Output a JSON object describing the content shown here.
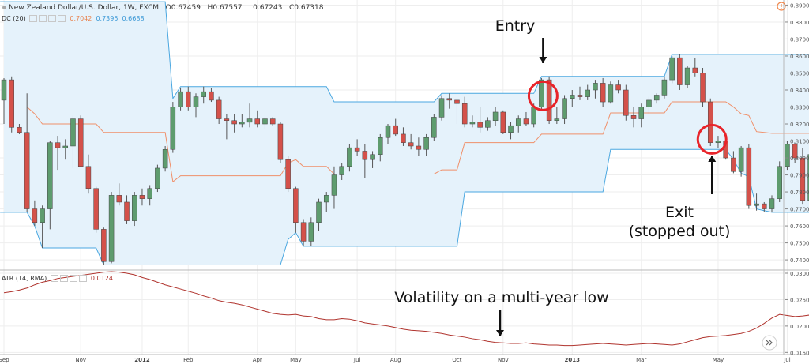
{
  "header": {
    "symbol_title": "New Zealand Dollar/U.S. Dollar, 1W, FXCM",
    "open_label": "O",
    "open": "0.67459",
    "high_label": "H",
    "high": "0.67557",
    "low_label": "L",
    "low": "0.67243",
    "close_label": "C",
    "close": "0.67318",
    "dc_label": "DC (20)",
    "dc_mid": "0.7042",
    "dc_upper": "0.7395",
    "dc_lower": "0.6688",
    "atr_label": "ATR (14, RMA)",
    "atr_value": "0.0124"
  },
  "colors": {
    "up_candle": "#5e9c6e",
    "down_candle": "#d4514a",
    "dc_band": "#4aa7e0",
    "dc_fill": "#e5f2fb",
    "dc_mid": "#f0906a",
    "atr_line": "#b0342e",
    "circle": "#e8242a",
    "grid": "#eeeeee"
  },
  "annotations": {
    "entry": "Entry",
    "exit_line1": "Exit",
    "exit_line2": "(stopped out)",
    "volatility": "Volatility on a multi-year low"
  },
  "chart_data": {
    "type": "candlestick",
    "price_axis": {
      "ylim": [
        0.734,
        0.893
      ],
      "ticks": [
        "0.89000",
        "0.88000",
        "0.87000",
        "0.86000",
        "0.85000",
        "0.84000",
        "0.83000",
        "0.82000",
        "0.81000",
        "0.80000",
        "0.79000",
        "0.78000",
        "0.77000",
        "0.76000",
        "0.75000",
        "0.74000"
      ]
    },
    "atr_axis": {
      "ylim": [
        0.0146,
        0.0306
      ],
      "ticks": [
        "0.0300",
        "0.0250",
        "0.0200",
        "0.0150"
      ]
    },
    "x_labels": [
      "Sep",
      "Nov",
      "2012",
      "Feb",
      "Apr",
      "May",
      "Jul",
      "Aug",
      "Oct",
      "Nov",
      "2013",
      "Mar",
      "May",
      "Jul",
      "Aug"
    ],
    "x_label_bar_index": [
      0,
      10,
      18,
      24,
      33,
      38,
      46,
      51,
      59,
      65,
      74,
      83,
      93,
      102,
      107
    ],
    "n_bars": 110,
    "candles_ohlc": [
      [
        0.834,
        0.847,
        0.82,
        0.846
      ],
      [
        0.846,
        0.848,
        0.815,
        0.818
      ],
      [
        0.818,
        0.82,
        0.814,
        0.815
      ],
      [
        0.815,
        0.838,
        0.768,
        0.77
      ],
      [
        0.77,
        0.775,
        0.76,
        0.762
      ],
      [
        0.762,
        0.772,
        0.747,
        0.77
      ],
      [
        0.77,
        0.81,
        0.758,
        0.809
      ],
      [
        0.809,
        0.813,
        0.793,
        0.806
      ],
      [
        0.806,
        0.811,
        0.799,
        0.807
      ],
      [
        0.807,
        0.825,
        0.794,
        0.823
      ],
      [
        0.823,
        0.825,
        0.796,
        0.795
      ],
      [
        0.795,
        0.802,
        0.779,
        0.782
      ],
      [
        0.782,
        0.783,
        0.756,
        0.758
      ],
      [
        0.758,
        0.759,
        0.737,
        0.739
      ],
      [
        0.739,
        0.78,
        0.738,
        0.778
      ],
      [
        0.778,
        0.785,
        0.772,
        0.774
      ],
      [
        0.774,
        0.778,
        0.761,
        0.763
      ],
      [
        0.763,
        0.78,
        0.76,
        0.778
      ],
      [
        0.778,
        0.782,
        0.772,
        0.776
      ],
      [
        0.776,
        0.784,
        0.772,
        0.782
      ],
      [
        0.782,
        0.796,
        0.78,
        0.794
      ],
      [
        0.794,
        0.807,
        0.792,
        0.805
      ],
      [
        0.805,
        0.833,
        0.803,
        0.83
      ],
      [
        0.83,
        0.841,
        0.828,
        0.839
      ],
      [
        0.839,
        0.842,
        0.828,
        0.83
      ],
      [
        0.83,
        0.838,
        0.824,
        0.836
      ],
      [
        0.836,
        0.842,
        0.832,
        0.839
      ],
      [
        0.839,
        0.841,
        0.833,
        0.834
      ],
      [
        0.834,
        0.836,
        0.82,
        0.823
      ],
      [
        0.823,
        0.826,
        0.811,
        0.822
      ],
      [
        0.822,
        0.826,
        0.815,
        0.82
      ],
      [
        0.82,
        0.826,
        0.818,
        0.821
      ],
      [
        0.821,
        0.832,
        0.818,
        0.823
      ],
      [
        0.823,
        0.828,
        0.818,
        0.82
      ],
      [
        0.82,
        0.824,
        0.817,
        0.823
      ],
      [
        0.823,
        0.824,
        0.819,
        0.82
      ],
      [
        0.82,
        0.821,
        0.797,
        0.799
      ],
      [
        0.799,
        0.801,
        0.78,
        0.782
      ],
      [
        0.782,
        0.783,
        0.756,
        0.762
      ],
      [
        0.762,
        0.764,
        0.748,
        0.751
      ],
      [
        0.751,
        0.765,
        0.748,
        0.762
      ],
      [
        0.762,
        0.776,
        0.757,
        0.774
      ],
      [
        0.774,
        0.78,
        0.768,
        0.778
      ],
      [
        0.778,
        0.795,
        0.77,
        0.79
      ],
      [
        0.79,
        0.797,
        0.787,
        0.795
      ],
      [
        0.795,
        0.808,
        0.792,
        0.806
      ],
      [
        0.806,
        0.811,
        0.801,
        0.804
      ],
      [
        0.804,
        0.808,
        0.788,
        0.799
      ],
      [
        0.799,
        0.804,
        0.794,
        0.802
      ],
      [
        0.802,
        0.814,
        0.798,
        0.812
      ],
      [
        0.812,
        0.82,
        0.808,
        0.819
      ],
      [
        0.819,
        0.823,
        0.813,
        0.814
      ],
      [
        0.814,
        0.818,
        0.807,
        0.809
      ],
      [
        0.809,
        0.814,
        0.805,
        0.807
      ],
      [
        0.807,
        0.812,
        0.801,
        0.805
      ],
      [
        0.805,
        0.814,
        0.801,
        0.812
      ],
      [
        0.812,
        0.826,
        0.81,
        0.824
      ],
      [
        0.824,
        0.837,
        0.822,
        0.835
      ],
      [
        0.835,
        0.838,
        0.829,
        0.834
      ],
      [
        0.834,
        0.835,
        0.82,
        0.832
      ],
      [
        0.832,
        0.836,
        0.818,
        0.82
      ],
      [
        0.82,
        0.825,
        0.818,
        0.821
      ],
      [
        0.821,
        0.83,
        0.815,
        0.818
      ],
      [
        0.818,
        0.824,
        0.816,
        0.822
      ],
      [
        0.822,
        0.83,
        0.819,
        0.827
      ],
      [
        0.827,
        0.828,
        0.814,
        0.815
      ],
      [
        0.815,
        0.821,
        0.811,
        0.819
      ],
      [
        0.819,
        0.825,
        0.815,
        0.823
      ],
      [
        0.823,
        0.827,
        0.819,
        0.82
      ],
      [
        0.82,
        0.832,
        0.818,
        0.83
      ],
      [
        0.83,
        0.847,
        0.828,
        0.846
      ],
      [
        0.846,
        0.848,
        0.82,
        0.822
      ],
      [
        0.822,
        0.83,
        0.82,
        0.823
      ],
      [
        0.823,
        0.837,
        0.82,
        0.835
      ],
      [
        0.835,
        0.84,
        0.83,
        0.837
      ],
      [
        0.837,
        0.842,
        0.834,
        0.836
      ],
      [
        0.836,
        0.843,
        0.834,
        0.84
      ],
      [
        0.84,
        0.846,
        0.835,
        0.844
      ],
      [
        0.844,
        0.847,
        0.83,
        0.833
      ],
      [
        0.833,
        0.845,
        0.832,
        0.843
      ],
      [
        0.843,
        0.846,
        0.838,
        0.84
      ],
      [
        0.84,
        0.843,
        0.822,
        0.825
      ],
      [
        0.825,
        0.83,
        0.818,
        0.823
      ],
      [
        0.823,
        0.832,
        0.818,
        0.83
      ],
      [
        0.83,
        0.836,
        0.826,
        0.834
      ],
      [
        0.834,
        0.838,
        0.832,
        0.837
      ],
      [
        0.837,
        0.848,
        0.835,
        0.846
      ],
      [
        0.846,
        0.86,
        0.844,
        0.859
      ],
      [
        0.859,
        0.861,
        0.84,
        0.843
      ],
      [
        0.843,
        0.854,
        0.841,
        0.853
      ],
      [
        0.853,
        0.859,
        0.848,
        0.85
      ],
      [
        0.85,
        0.853,
        0.83,
        0.833
      ],
      [
        0.833,
        0.835,
        0.807,
        0.809
      ],
      [
        0.809,
        0.813,
        0.806,
        0.81
      ],
      [
        0.81,
        0.811,
        0.799,
        0.8
      ],
      [
        0.8,
        0.804,
        0.791,
        0.792
      ],
      [
        0.792,
        0.807,
        0.789,
        0.806
      ],
      [
        0.806,
        0.808,
        0.77,
        0.772
      ],
      [
        0.772,
        0.779,
        0.769,
        0.773
      ],
      [
        0.773,
        0.774,
        0.768,
        0.77
      ],
      [
        0.77,
        0.778,
        0.768,
        0.776
      ],
      [
        0.776,
        0.798,
        0.774,
        0.795
      ],
      [
        0.795,
        0.81,
        0.793,
        0.808
      ],
      [
        0.808,
        0.809,
        0.797,
        0.8
      ],
      [
        0.8,
        0.806,
        0.773,
        0.775
      ],
      [
        0.775,
        0.804,
        0.773,
        0.802
      ],
      [
        0.802,
        0.813,
        0.799,
        0.81
      ],
      [
        0.81,
        0.812,
        0.798,
        0.8
      ],
      [
        0.8,
        0.805,
        0.795,
        0.802
      ],
      [
        0.802,
        0.806,
        0.8,
        0.804
      ]
    ],
    "donchian_upper": [
      0.892,
      0.892,
      0.892,
      0.892,
      0.892,
      0.892,
      0.892,
      0.892,
      0.892,
      0.892,
      0.892,
      0.892,
      0.892,
      0.892,
      0.892,
      0.892,
      0.892,
      0.892,
      0.892,
      0.892,
      0.892,
      0.892,
      0.835,
      0.842,
      0.842,
      0.842,
      0.842,
      0.842,
      0.842,
      0.842,
      0.842,
      0.842,
      0.842,
      0.842,
      0.842,
      0.842,
      0.842,
      0.842,
      0.842,
      0.842,
      0.842,
      0.842,
      0.842,
      0.833,
      0.833,
      0.833,
      0.833,
      0.833,
      0.833,
      0.833,
      0.833,
      0.833,
      0.833,
      0.833,
      0.833,
      0.833,
      0.833,
      0.838,
      0.838,
      0.838,
      0.838,
      0.838,
      0.838,
      0.838,
      0.838,
      0.838,
      0.838,
      0.838,
      0.838,
      0.838,
      0.848,
      0.848,
      0.848,
      0.848,
      0.848,
      0.848,
      0.848,
      0.848,
      0.848,
      0.848,
      0.848,
      0.848,
      0.848,
      0.848,
      0.848,
      0.848,
      0.848,
      0.861,
      0.861,
      0.861,
      0.861,
      0.861,
      0.861,
      0.861,
      0.861,
      0.861,
      0.861,
      0.861,
      0.861,
      0.861,
      0.861,
      0.861,
      0.861,
      0.861,
      0.861,
      0.861,
      0.861,
      0.861,
      0.861,
      0.861
    ],
    "donchian_lower": [
      0.768,
      0.768,
      0.768,
      0.768,
      0.76,
      0.747,
      0.747,
      0.747,
      0.747,
      0.747,
      0.747,
      0.747,
      0.747,
      0.737,
      0.737,
      0.737,
      0.737,
      0.737,
      0.737,
      0.737,
      0.737,
      0.737,
      0.737,
      0.737,
      0.737,
      0.737,
      0.737,
      0.737,
      0.737,
      0.737,
      0.737,
      0.737,
      0.737,
      0.737,
      0.737,
      0.737,
      0.737,
      0.752,
      0.756,
      0.748,
      0.748,
      0.748,
      0.748,
      0.748,
      0.748,
      0.748,
      0.748,
      0.748,
      0.748,
      0.748,
      0.748,
      0.748,
      0.748,
      0.748,
      0.748,
      0.748,
      0.748,
      0.748,
      0.748,
      0.748,
      0.78,
      0.78,
      0.78,
      0.78,
      0.78,
      0.78,
      0.78,
      0.78,
      0.78,
      0.78,
      0.78,
      0.78,
      0.78,
      0.78,
      0.78,
      0.78,
      0.78,
      0.78,
      0.78,
      0.805,
      0.805,
      0.805,
      0.805,
      0.805,
      0.805,
      0.805,
      0.805,
      0.805,
      0.805,
      0.805,
      0.805,
      0.805,
      0.805,
      0.805,
      0.805,
      0.799,
      0.791,
      0.789,
      0.77,
      0.769,
      0.768,
      0.768,
      0.768,
      0.768,
      0.768,
      0.768,
      0.768,
      0.768,
      0.768,
      0.768
    ],
    "donchian_mid": [
      0.83,
      0.83,
      0.83,
      0.83,
      0.826,
      0.82,
      0.82,
      0.82,
      0.82,
      0.82,
      0.82,
      0.82,
      0.82,
      0.815,
      0.815,
      0.815,
      0.815,
      0.815,
      0.815,
      0.815,
      0.815,
      0.815,
      0.786,
      0.7895,
      0.7895,
      0.7895,
      0.7895,
      0.7895,
      0.7895,
      0.7895,
      0.7895,
      0.7895,
      0.7895,
      0.7895,
      0.7895,
      0.7895,
      0.7895,
      0.797,
      0.799,
      0.795,
      0.795,
      0.795,
      0.795,
      0.7905,
      0.7905,
      0.7905,
      0.7905,
      0.7905,
      0.7905,
      0.7905,
      0.7905,
      0.7905,
      0.7905,
      0.7905,
      0.7905,
      0.7905,
      0.7905,
      0.793,
      0.793,
      0.793,
      0.809,
      0.809,
      0.809,
      0.809,
      0.809,
      0.809,
      0.809,
      0.809,
      0.809,
      0.809,
      0.814,
      0.814,
      0.814,
      0.814,
      0.814,
      0.814,
      0.814,
      0.814,
      0.814,
      0.8265,
      0.8265,
      0.8265,
      0.8265,
      0.8265,
      0.8265,
      0.8265,
      0.8265,
      0.833,
      0.833,
      0.833,
      0.833,
      0.833,
      0.833,
      0.833,
      0.833,
      0.83,
      0.826,
      0.825,
      0.8155,
      0.815,
      0.8145,
      0.8145,
      0.8145,
      0.8145,
      0.8145,
      0.8145,
      0.8145,
      0.8145,
      0.8145,
      0.8145
    ],
    "atr_values": [
      0.0263,
      0.0265,
      0.0268,
      0.0272,
      0.0278,
      0.0283,
      0.0286,
      0.029,
      0.0292,
      0.0294,
      0.0296,
      0.0298,
      0.03,
      0.0302,
      0.0303,
      0.0302,
      0.03,
      0.0297,
      0.0292,
      0.0288,
      0.0283,
      0.0278,
      0.0274,
      0.027,
      0.0266,
      0.0262,
      0.0257,
      0.0253,
      0.0248,
      0.0245,
      0.0243,
      0.024,
      0.0236,
      0.0232,
      0.0228,
      0.0224,
      0.0222,
      0.0221,
      0.0222,
      0.0219,
      0.0218,
      0.0214,
      0.0212,
      0.0212,
      0.0214,
      0.0213,
      0.021,
      0.0206,
      0.0204,
      0.0202,
      0.02,
      0.0197,
      0.0194,
      0.0192,
      0.0191,
      0.019,
      0.0188,
      0.0186,
      0.0183,
      0.0181,
      0.0179,
      0.0176,
      0.0174,
      0.0171,
      0.0169,
      0.0168,
      0.0167,
      0.0167,
      0.0168,
      0.0166,
      0.0165,
      0.0164,
      0.0164,
      0.0163,
      0.0163,
      0.0164,
      0.0165,
      0.0166,
      0.0167,
      0.0166,
      0.0165,
      0.0164,
      0.0165,
      0.0166,
      0.0167,
      0.0166,
      0.0165,
      0.0164,
      0.0166,
      0.017,
      0.0174,
      0.0178,
      0.018,
      0.0181,
      0.0182,
      0.0184,
      0.0186,
      0.019,
      0.0196,
      0.0205,
      0.0215,
      0.0222,
      0.022,
      0.0218,
      0.0219,
      0.0221,
      0.0222,
      0.0225,
      0.0228,
      0.0232,
      0.023
    ],
    "markers": {
      "entry_bar": 70,
      "exit_bar": 92
    }
  }
}
